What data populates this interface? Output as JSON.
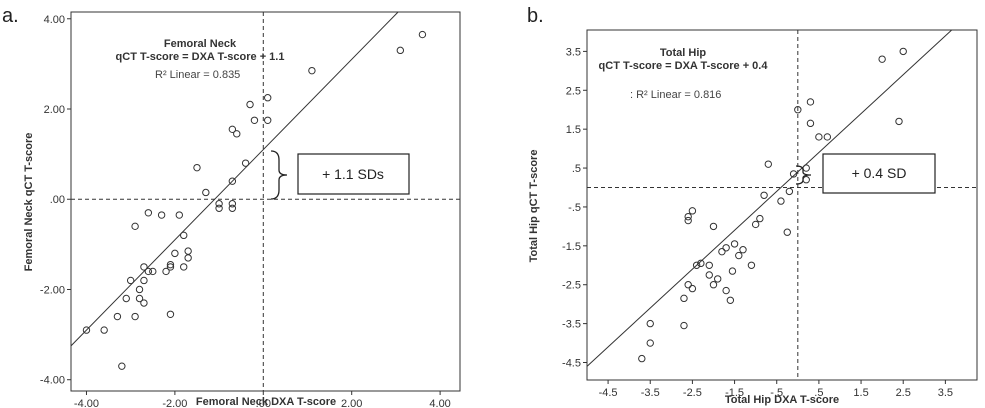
{
  "chart_data": [
    {
      "type": "scatter",
      "panel_label": "a.",
      "xlabel": "Femoral Neck DXA T-score",
      "ylabel": "Femoral Neck qCT T-score",
      "xlim": [
        -4.35,
        4.45
      ],
      "ylim": [
        -4.25,
        4.15
      ],
      "x_ticks": [
        -4,
        -2,
        0,
        2,
        4
      ],
      "x_tick_labels": [
        "-4.00",
        "-2.00",
        ".00",
        "2.00",
        "4.00"
      ],
      "y_ticks": [
        4,
        2,
        0,
        -2,
        -4
      ],
      "y_tick_labels": [
        "4.00",
        "2.00",
        ".00",
        "-2.00",
        "-4.00"
      ],
      "annotation_title": "Femoral Neck",
      "annotation_equation": "qCT T-score = DXA T-score + 1.1",
      "r2_label": "R² Linear = 0.835",
      "fit_line": {
        "slope": 1.0,
        "intercept": 1.1
      },
      "callout_text": "+ 1.1 SDs",
      "grid": false,
      "reference_lines": {
        "x": 0,
        "y": 0
      },
      "points": [
        [
          -4.0,
          -2.9
        ],
        [
          -3.6,
          -2.9
        ],
        [
          -3.3,
          -2.6
        ],
        [
          -3.2,
          -3.7
        ],
        [
          -3.1,
          -2.2
        ],
        [
          -3.0,
          -1.8
        ],
        [
          -2.9,
          -2.6
        ],
        [
          -2.8,
          -2.0
        ],
        [
          -2.9,
          -0.6
        ],
        [
          -2.8,
          -2.2
        ],
        [
          -2.7,
          -1.5
        ],
        [
          -2.6,
          -1.6
        ],
        [
          -2.7,
          -2.3
        ],
        [
          -2.7,
          -1.8
        ],
        [
          -2.5,
          -1.6
        ],
        [
          -2.6,
          -0.3
        ],
        [
          -2.3,
          -0.35
        ],
        [
          -2.2,
          -1.6
        ],
        [
          -2.1,
          -1.5
        ],
        [
          -2.1,
          -2.55
        ],
        [
          -2.1,
          -1.45
        ],
        [
          -2.0,
          -1.2
        ],
        [
          -1.9,
          -0.35
        ],
        [
          -1.8,
          -1.5
        ],
        [
          -1.8,
          -0.8
        ],
        [
          -1.7,
          -1.15
        ],
        [
          -1.7,
          -1.3
        ],
        [
          -1.5,
          0.7
        ],
        [
          -1.3,
          0.15
        ],
        [
          -1.0,
          -0.1
        ],
        [
          -1.0,
          -0.2
        ],
        [
          -0.7,
          -0.1
        ],
        [
          -0.7,
          -0.2
        ],
        [
          -0.7,
          0.4
        ],
        [
          -0.7,
          1.55
        ],
        [
          -0.6,
          1.45
        ],
        [
          -0.4,
          0.8
        ],
        [
          -0.3,
          2.1
        ],
        [
          -0.2,
          1.75
        ],
        [
          0.1,
          2.25
        ],
        [
          0.1,
          1.75
        ],
        [
          1.1,
          2.85
        ],
        [
          3.1,
          3.3
        ],
        [
          3.6,
          3.65
        ]
      ]
    },
    {
      "type": "scatter",
      "panel_label": "b.",
      "xlabel": "Total Hip DXA T-score",
      "ylabel": "Total Hip qCT T-score",
      "xlim": [
        -5.0,
        4.25
      ],
      "ylim": [
        -4.95,
        4.05
      ],
      "x_ticks": [
        -4.5,
        -3.5,
        -2.5,
        -1.5,
        -0.5,
        0.5,
        1.5,
        2.5,
        3.5
      ],
      "x_tick_labels": [
        "-4.5",
        "-3.5",
        "-2.5",
        "-1.5",
        "-.5",
        ".5",
        "1.5",
        "2.5",
        "3.5"
      ],
      "y_ticks": [
        3.5,
        2.5,
        1.5,
        0.5,
        -0.5,
        -1.5,
        -2.5,
        -3.5,
        -4.5
      ],
      "y_tick_labels": [
        "3.5",
        "2.5",
        "1.5",
        ".5",
        "-.5",
        "-1.5",
        "-2.5",
        "-3.5",
        "-4.5"
      ],
      "annotation_title": "Total Hip",
      "annotation_equation": "qCT T-score = DXA T-score + 0.4",
      "r2_label": ": R² Linear = 0.816",
      "fit_line": {
        "slope": 1.0,
        "intercept": 0.4
      },
      "callout_text": "+ 0.4 SD",
      "grid": false,
      "reference_lines": {
        "x": 0,
        "y": 0
      },
      "points": [
        [
          -3.7,
          -4.4
        ],
        [
          -3.5,
          -3.5
        ],
        [
          -3.5,
          -4.0
        ],
        [
          -2.7,
          -3.55
        ],
        [
          -2.7,
          -2.85
        ],
        [
          -2.6,
          -2.5
        ],
        [
          -2.5,
          -2.6
        ],
        [
          -2.6,
          -0.85
        ],
        [
          -2.6,
          -0.75
        ],
        [
          -2.5,
          -0.6
        ],
        [
          -2.4,
          -2.0
        ],
        [
          -2.3,
          -1.95
        ],
        [
          -2.1,
          -2.0
        ],
        [
          -2.1,
          -2.25
        ],
        [
          -2.0,
          -2.5
        ],
        [
          -2.0,
          -1.0
        ],
        [
          -1.9,
          -2.35
        ],
        [
          -1.8,
          -1.65
        ],
        [
          -1.7,
          -1.55
        ],
        [
          -1.6,
          -2.9
        ],
        [
          -1.7,
          -2.65
        ],
        [
          -1.55,
          -2.15
        ],
        [
          -1.5,
          -1.45
        ],
        [
          -1.4,
          -1.75
        ],
        [
          -1.3,
          -1.6
        ],
        [
          -1.1,
          -2.0
        ],
        [
          -1.0,
          -0.95
        ],
        [
          -0.9,
          -0.8
        ],
        [
          -0.8,
          -0.2
        ],
        [
          -0.7,
          0.6
        ],
        [
          -0.4,
          -0.35
        ],
        [
          -0.25,
          -1.15
        ],
        [
          -0.2,
          -0.1
        ],
        [
          -0.1,
          0.35
        ],
        [
          0.0,
          2.0
        ],
        [
          0.2,
          0.5
        ],
        [
          0.2,
          0.2
        ],
        [
          0.3,
          2.2
        ],
        [
          0.3,
          1.65
        ],
        [
          0.5,
          1.3
        ],
        [
          0.7,
          1.3
        ],
        [
          2.0,
          3.3
        ],
        [
          2.4,
          1.7
        ],
        [
          2.5,
          3.5
        ]
      ]
    }
  ]
}
